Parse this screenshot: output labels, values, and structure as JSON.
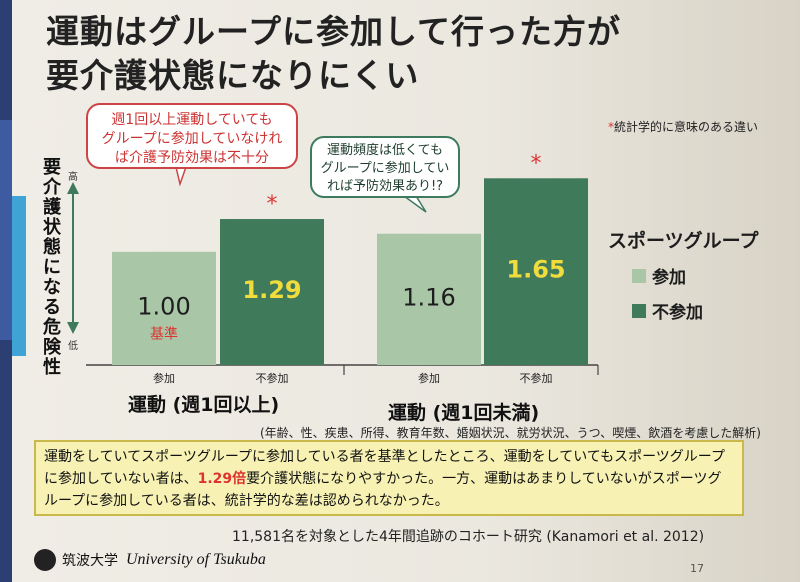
{
  "title": "運動はグループに参加して行った方が\n要介護状態になりにくい",
  "significance_note": "統計学的に意味のある違い",
  "y_axis_label": "要介護状態になる危険性",
  "y_tick_high": "高",
  "y_tick_low": "低",
  "callout_left": "週1回以上運動していても\nグループに参加していなけれ\nば介護予防効果は不十分",
  "callout_right": "運動頻度は低くても\nグループに参加してい\nれば予防効果あり!?",
  "reference_label": "基準",
  "legend": {
    "title": "スポーツグループ",
    "items": [
      "参加",
      "不参加"
    ]
  },
  "covariates_note": "(年齢、性、疾患、所得、教育年数、婚姻状況、就労状況、うつ、喫煙、飲酒を考慮した解析)",
  "summary": {
    "part1": "運動をしていてスポーツグループに参加している者を基準としたところ、運動をしていてもスポーツグループに参加していない者は、",
    "highlight": "1.29倍",
    "part2": "要介護状態になりやすかった。一方、運動はあまりしていないがスポーツグループに参加している者は、統計学的な差は認められなかった。"
  },
  "study_note": "11,581名を対象とした4年間追跡のコホート研究 (Kanamori et al. 2012)",
  "university": {
    "jp": "筑波大学",
    "en": "University of Tsukuba"
  },
  "page_number": "17",
  "colors": {
    "participate": "#a9c7a6",
    "not_participate": "#3f7a5b",
    "value_light": "#f0dc3c",
    "star": "#d33",
    "axis": "#444"
  },
  "chart_data": {
    "type": "bar",
    "groups": [
      {
        "name": "運動 (週1回以上)",
        "bars": [
          {
            "category": "参加",
            "value": 1.0,
            "significant": false
          },
          {
            "category": "不参加",
            "value": 1.29,
            "significant": true
          }
        ]
      },
      {
        "name": "運動 (週1回未満)",
        "bars": [
          {
            "category": "参加",
            "value": 1.16,
            "significant": false
          },
          {
            "category": "不参加",
            "value": 1.65,
            "significant": true
          }
        ]
      }
    ],
    "ylim": [
      0,
      1.9
    ]
  }
}
